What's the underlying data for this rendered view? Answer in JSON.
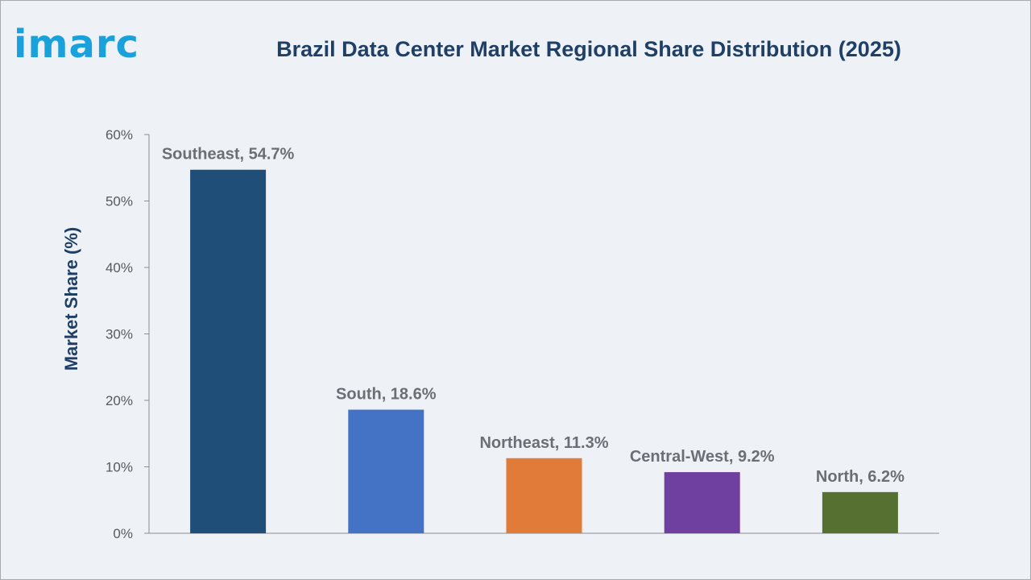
{
  "brand": {
    "logo_text": "imarc",
    "logo_color": "#1aa1dc"
  },
  "chart_data": {
    "type": "bar",
    "title": "Brazil Data Center Market Regional Share Distribution (2025)",
    "xlabel": "",
    "ylabel": "Market Share (%)",
    "ylim": [
      0,
      60
    ],
    "y_ticks": [
      0,
      10,
      20,
      30,
      40,
      50,
      60
    ],
    "y_tick_labels": [
      "0%",
      "10%",
      "20%",
      "30%",
      "40%",
      "50%",
      "60%"
    ],
    "grid": false,
    "categories": [
      "Southeast",
      "South",
      "Northeast",
      "Central-West",
      "North"
    ],
    "values": [
      54.7,
      18.6,
      11.3,
      9.2,
      6.2
    ],
    "data_labels": [
      "Southeast, 54.7%",
      "South, 18.6%",
      "Northeast, 11.3%",
      "Central-West, 9.2%",
      "North, 6.2%"
    ],
    "colors": [
      "#1f4e79",
      "#4472c4",
      "#e07b39",
      "#7040a0",
      "#557030"
    ]
  }
}
